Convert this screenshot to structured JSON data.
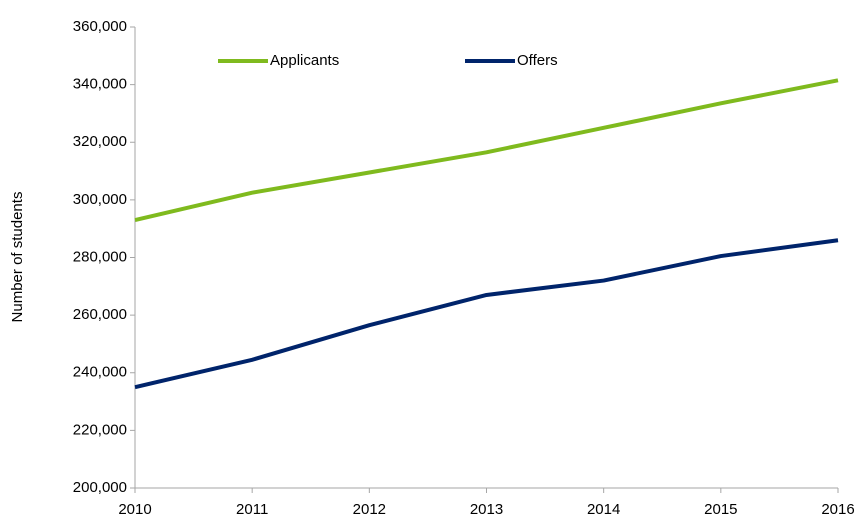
{
  "chart_data": {
    "type": "line",
    "y_label": "Number of students",
    "x": [
      2010,
      2011,
      2012,
      2013,
      2014,
      2015,
      2016
    ],
    "series": [
      {
        "name": "Applicants",
        "color": "#7fba1e",
        "values": [
          293000,
          302500,
          309500,
          316500,
          325000,
          333500,
          341500
        ]
      },
      {
        "name": "Offers",
        "color": "#00246b",
        "values": [
          235000,
          244500,
          256500,
          267000,
          272000,
          280500,
          286000
        ]
      }
    ],
    "xlim": [
      2010,
      2016
    ],
    "xticks": [
      2010,
      2011,
      2012,
      2013,
      2014,
      2015,
      2016
    ],
    "ylim": [
      200000,
      360000
    ],
    "yticks": [
      {
        "value": 200000,
        "label": "200,000"
      },
      {
        "value": 220000,
        "label": "220,000"
      },
      {
        "value": 240000,
        "label": "240,000"
      },
      {
        "value": 260000,
        "label": "260,000"
      },
      {
        "value": 280000,
        "label": "280,000"
      },
      {
        "value": 300000,
        "label": "300,000"
      },
      {
        "value": 320000,
        "label": "320,000"
      },
      {
        "value": 340000,
        "label": "340,000"
      },
      {
        "value": 360000,
        "label": "360,000"
      }
    ],
    "grid": false,
    "legend": "top"
  }
}
